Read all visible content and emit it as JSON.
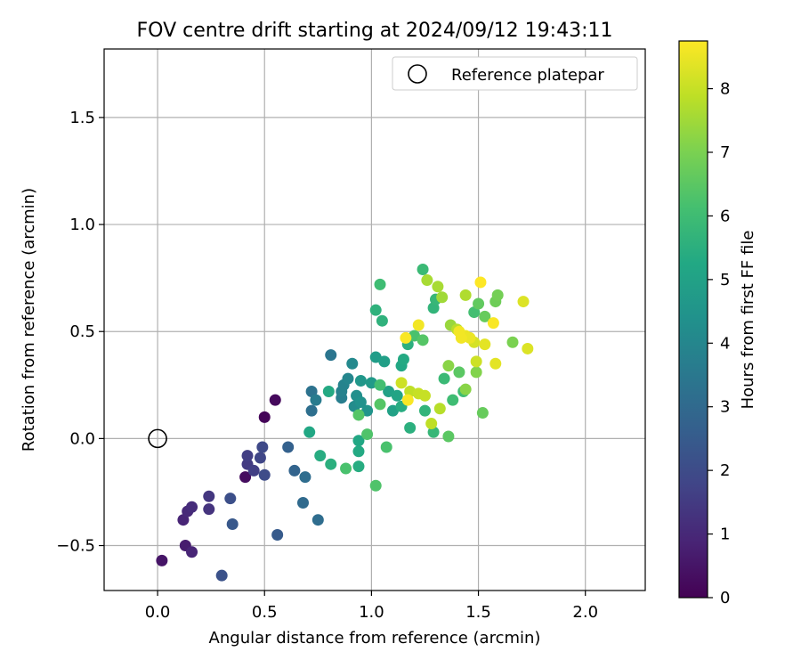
{
  "chart_data": {
    "type": "scatter",
    "title": "FOV centre drift starting at 2024/09/12 19:43:11",
    "xlabel": "Angular distance from reference (arcmin)",
    "ylabel": "Rotation from reference (arcmin)",
    "xlim": [
      -0.25,
      2.28
    ],
    "ylim": [
      -0.71,
      1.82
    ],
    "xticks": [
      0.0,
      0.5,
      1.0,
      1.5,
      2.0
    ],
    "xtick_labels": [
      "0.0",
      "0.5",
      "1.0",
      "1.5",
      "2.0"
    ],
    "yticks": [
      -0.5,
      0.0,
      0.5,
      1.0,
      1.5
    ],
    "ytick_labels": [
      "−0.5",
      "0.0",
      "0.5",
      "1.0",
      "1.5"
    ],
    "grid": true,
    "legend": {
      "placement": "top-right",
      "label": "Reference platepar",
      "marker": "open-circle"
    },
    "reference_point": {
      "x": 0.0,
      "y": 0.0
    },
    "colorbar": {
      "label": "Hours from first FF file",
      "colormap": "viridis",
      "range": [
        0,
        8.75
      ],
      "ticks": [
        0,
        1,
        2,
        3,
        4,
        5,
        6,
        7,
        8
      ],
      "tick_labels": [
        "0",
        "1",
        "2",
        "3",
        "4",
        "5",
        "6",
        "7",
        "8"
      ]
    },
    "points": [
      {
        "x": 0.5,
        "y": 0.1,
        "c": 0.1
      },
      {
        "x": 0.55,
        "y": 0.18,
        "c": 0.2
      },
      {
        "x": 0.41,
        "y": -0.18,
        "c": 0.3
      },
      {
        "x": 0.02,
        "y": -0.57,
        "c": 0.5
      },
      {
        "x": 0.13,
        "y": -0.5,
        "c": 0.7
      },
      {
        "x": 0.16,
        "y": -0.53,
        "c": 0.9
      },
      {
        "x": 0.12,
        "y": -0.38,
        "c": 0.9
      },
      {
        "x": 0.14,
        "y": -0.34,
        "c": 1.0
      },
      {
        "x": 0.16,
        "y": -0.32,
        "c": 1.1
      },
      {
        "x": 0.24,
        "y": -0.33,
        "c": 1.3
      },
      {
        "x": 0.24,
        "y": -0.27,
        "c": 1.4
      },
      {
        "x": 0.42,
        "y": -0.12,
        "c": 1.5
      },
      {
        "x": 0.42,
        "y": -0.08,
        "c": 1.6
      },
      {
        "x": 0.45,
        "y": -0.15,
        "c": 1.6
      },
      {
        "x": 0.48,
        "y": -0.09,
        "c": 1.8
      },
      {
        "x": 0.49,
        "y": -0.04,
        "c": 1.9
      },
      {
        "x": 0.5,
        "y": -0.17,
        "c": 2.0
      },
      {
        "x": 0.34,
        "y": -0.28,
        "c": 2.1
      },
      {
        "x": 0.3,
        "y": -0.64,
        "c": 2.2
      },
      {
        "x": 0.35,
        "y": -0.4,
        "c": 2.4
      },
      {
        "x": 0.56,
        "y": -0.45,
        "c": 2.5
      },
      {
        "x": 0.61,
        "y": -0.04,
        "c": 2.7
      },
      {
        "x": 0.64,
        "y": -0.15,
        "c": 2.8
      },
      {
        "x": 0.68,
        "y": -0.3,
        "c": 3.0
      },
      {
        "x": 0.69,
        "y": -0.18,
        "c": 3.1
      },
      {
        "x": 0.75,
        "y": -0.38,
        "c": 3.1
      },
      {
        "x": 0.72,
        "y": 0.13,
        "c": 3.2
      },
      {
        "x": 0.72,
        "y": 0.22,
        "c": 3.3
      },
      {
        "x": 0.81,
        "y": 0.39,
        "c": 3.4
      },
      {
        "x": 0.74,
        "y": 0.18,
        "c": 3.6
      },
      {
        "x": 0.86,
        "y": 0.19,
        "c": 3.7
      },
      {
        "x": 0.86,
        "y": 0.22,
        "c": 3.8
      },
      {
        "x": 0.87,
        "y": 0.25,
        "c": 3.9
      },
      {
        "x": 0.89,
        "y": 0.28,
        "c": 4.0
      },
      {
        "x": 0.91,
        "y": 0.35,
        "c": 4.1
      },
      {
        "x": 0.92,
        "y": 0.15,
        "c": 4.2
      },
      {
        "x": 0.93,
        "y": 0.2,
        "c": 4.3
      },
      {
        "x": 0.95,
        "y": 0.17,
        "c": 4.4
      },
      {
        "x": 0.98,
        "y": 0.13,
        "c": 4.5
      },
      {
        "x": 0.95,
        "y": 0.27,
        "c": 4.6
      },
      {
        "x": 1.0,
        "y": 0.26,
        "c": 4.7
      },
      {
        "x": 1.02,
        "y": 0.38,
        "c": 4.8
      },
      {
        "x": 1.06,
        "y": 0.36,
        "c": 4.9
      },
      {
        "x": 1.08,
        "y": 0.22,
        "c": 5.0
      },
      {
        "x": 1.1,
        "y": 0.13,
        "c": 5.0
      },
      {
        "x": 1.12,
        "y": 0.2,
        "c": 5.1
      },
      {
        "x": 1.14,
        "y": 0.34,
        "c": 5.2
      },
      {
        "x": 1.15,
        "y": 0.37,
        "c": 5.3
      },
      {
        "x": 1.14,
        "y": 0.15,
        "c": 5.4
      },
      {
        "x": 1.17,
        "y": 0.44,
        "c": 5.5
      },
      {
        "x": 1.18,
        "y": 0.05,
        "c": 5.5
      },
      {
        "x": 1.05,
        "y": 0.55,
        "c": 5.6
      },
      {
        "x": 1.02,
        "y": 0.6,
        "c": 5.6
      },
      {
        "x": 1.25,
        "y": 0.13,
        "c": 5.7
      },
      {
        "x": 1.29,
        "y": 0.61,
        "c": 5.7
      },
      {
        "x": 1.29,
        "y": 0.03,
        "c": 5.8
      },
      {
        "x": 1.3,
        "y": 0.65,
        "c": 5.8
      },
      {
        "x": 1.24,
        "y": 0.79,
        "c": 5.9
      },
      {
        "x": 1.34,
        "y": 0.28,
        "c": 5.9
      },
      {
        "x": 1.38,
        "y": 0.18,
        "c": 6.0
      },
      {
        "x": 1.43,
        "y": 0.22,
        "c": 6.0
      },
      {
        "x": 1.48,
        "y": 0.59,
        "c": 6.1
      },
      {
        "x": 1.04,
        "y": 0.72,
        "c": 6.0
      },
      {
        "x": 0.71,
        "y": 0.03,
        "c": 5.2
      },
      {
        "x": 0.76,
        "y": -0.08,
        "c": 5.4
      },
      {
        "x": 0.81,
        "y": -0.12,
        "c": 5.5
      },
      {
        "x": 0.8,
        "y": 0.22,
        "c": 5.3
      },
      {
        "x": 0.94,
        "y": -0.01,
        "c": 5.2
      },
      {
        "x": 0.94,
        "y": -0.06,
        "c": 5.3
      },
      {
        "x": 0.94,
        "y": -0.13,
        "c": 5.4
      },
      {
        "x": 0.88,
        "y": -0.14,
        "c": 6.2
      },
      {
        "x": 1.02,
        "y": -0.22,
        "c": 6.3
      },
      {
        "x": 1.07,
        "y": -0.04,
        "c": 6.2
      },
      {
        "x": 0.98,
        "y": 0.02,
        "c": 6.3
      },
      {
        "x": 0.94,
        "y": 0.11,
        "c": 6.4
      },
      {
        "x": 1.04,
        "y": 0.16,
        "c": 6.4
      },
      {
        "x": 1.04,
        "y": 0.25,
        "c": 6.1
      },
      {
        "x": 1.2,
        "y": 0.48,
        "c": 6.2
      },
      {
        "x": 1.24,
        "y": 0.46,
        "c": 6.4
      },
      {
        "x": 1.36,
        "y": 0.01,
        "c": 6.5
      },
      {
        "x": 1.41,
        "y": 0.31,
        "c": 6.5
      },
      {
        "x": 1.5,
        "y": 0.63,
        "c": 6.6
      },
      {
        "x": 1.53,
        "y": 0.57,
        "c": 6.7
      },
      {
        "x": 1.52,
        "y": 0.12,
        "c": 6.7
      },
      {
        "x": 1.58,
        "y": 0.64,
        "c": 6.8
      },
      {
        "x": 1.59,
        "y": 0.67,
        "c": 6.9
      },
      {
        "x": 1.66,
        "y": 0.45,
        "c": 7.0
      },
      {
        "x": 1.49,
        "y": 0.31,
        "c": 7.1
      },
      {
        "x": 1.44,
        "y": 0.23,
        "c": 7.2
      },
      {
        "x": 1.36,
        "y": 0.34,
        "c": 7.2
      },
      {
        "x": 1.37,
        "y": 0.53,
        "c": 7.4
      },
      {
        "x": 1.33,
        "y": 0.66,
        "c": 7.5
      },
      {
        "x": 1.31,
        "y": 0.71,
        "c": 7.6
      },
      {
        "x": 1.26,
        "y": 0.74,
        "c": 7.6
      },
      {
        "x": 1.44,
        "y": 0.67,
        "c": 7.7
      },
      {
        "x": 1.4,
        "y": 0.51,
        "c": 7.8
      },
      {
        "x": 1.32,
        "y": 0.14,
        "c": 7.8
      },
      {
        "x": 1.28,
        "y": 0.07,
        "c": 7.9
      },
      {
        "x": 1.18,
        "y": 0.22,
        "c": 7.9
      },
      {
        "x": 1.22,
        "y": 0.21,
        "c": 8.0
      },
      {
        "x": 1.25,
        "y": 0.2,
        "c": 8.0
      },
      {
        "x": 1.14,
        "y": 0.26,
        "c": 8.1
      },
      {
        "x": 1.49,
        "y": 0.36,
        "c": 8.1
      },
      {
        "x": 1.48,
        "y": 0.45,
        "c": 8.2
      },
      {
        "x": 1.71,
        "y": 0.64,
        "c": 8.3
      },
      {
        "x": 1.73,
        "y": 0.42,
        "c": 8.3
      },
      {
        "x": 1.58,
        "y": 0.35,
        "c": 8.4
      },
      {
        "x": 1.53,
        "y": 0.44,
        "c": 8.4
      },
      {
        "x": 1.44,
        "y": 0.48,
        "c": 8.5
      },
      {
        "x": 1.46,
        "y": 0.47,
        "c": 8.5
      },
      {
        "x": 1.42,
        "y": 0.47,
        "c": 8.6
      },
      {
        "x": 1.41,
        "y": 0.5,
        "c": 8.6
      },
      {
        "x": 1.22,
        "y": 0.53,
        "c": 8.6
      },
      {
        "x": 1.16,
        "y": 0.47,
        "c": 8.7
      },
      {
        "x": 1.17,
        "y": 0.18,
        "c": 8.7
      },
      {
        "x": 1.57,
        "y": 0.54,
        "c": 8.7
      },
      {
        "x": 1.51,
        "y": 0.73,
        "c": 8.75
      }
    ]
  }
}
